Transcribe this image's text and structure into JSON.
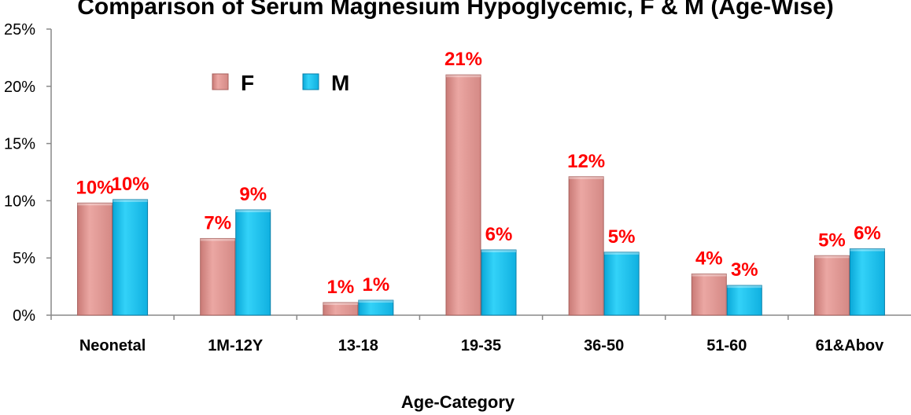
{
  "chart_data": {
    "type": "bar",
    "title": "Comparison of Serum Magnesium Hypoglycemic, F & M (Age-Wise)",
    "xlabel": "Age-Category",
    "ylabel": "",
    "categories": [
      "Neonetal",
      "1M-12Y",
      "13-18",
      "19-35",
      "36-50",
      "51-60",
      "61&Abov"
    ],
    "series": [
      {
        "name": "F",
        "values": [
          10,
          7,
          1,
          21,
          12,
          4,
          5
        ],
        "plotted": [
          9.8,
          6.7,
          1.1,
          21.0,
          12.1,
          3.6,
          5.2
        ],
        "color": "#e8a09c"
      },
      {
        "name": "M",
        "values": [
          10,
          9,
          1,
          6,
          5,
          3,
          6
        ],
        "plotted": [
          10.1,
          9.2,
          1.3,
          5.7,
          5.5,
          2.6,
          5.8
        ],
        "color": "#1cc4ee"
      }
    ],
    "data_labels": [
      [
        "10%",
        "7%",
        "1%",
        "21%",
        "12%",
        "4%",
        "5%"
      ],
      [
        "10%",
        "9%",
        "1%",
        "6%",
        "5%",
        "3%",
        "6%"
      ]
    ],
    "yticks": [
      "0%",
      "5%",
      "10%",
      "15%",
      "20%",
      "25%"
    ],
    "ylim": [
      0,
      25
    ],
    "grid": false,
    "legend": "top-left"
  }
}
